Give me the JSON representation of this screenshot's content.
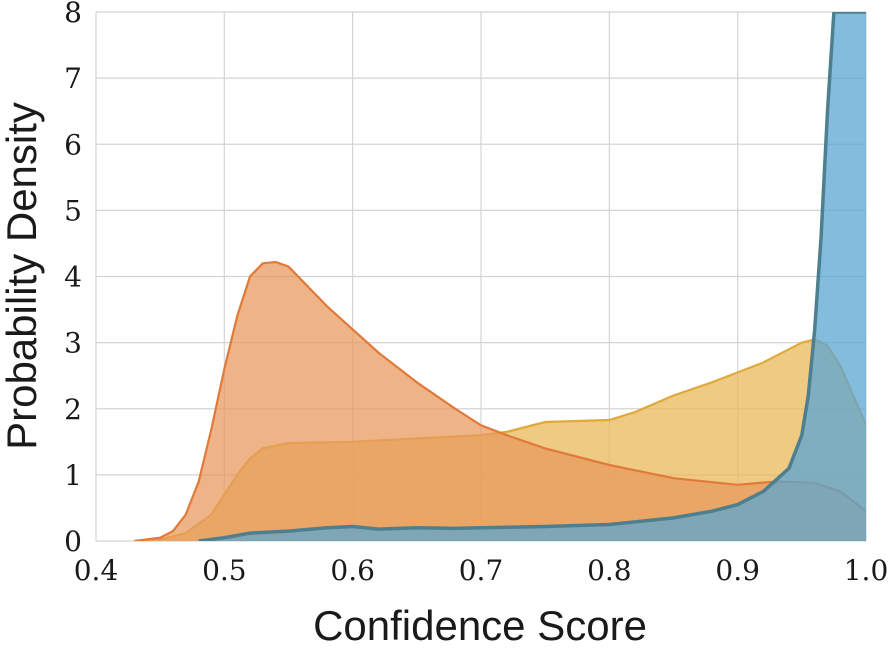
{
  "chart_data": {
    "type": "area",
    "title": "",
    "xlabel": "Confidence Score",
    "ylabel": "Probability Density",
    "xlim": [
      0.4,
      1.0
    ],
    "ylim": [
      0,
      8
    ],
    "xticks": [
      "0.4",
      "0.5",
      "0.6",
      "0.7",
      "0.8",
      "0.9",
      "1.0"
    ],
    "yticks": [
      "0",
      "1",
      "2",
      "3",
      "4",
      "5",
      "6",
      "7",
      "8"
    ],
    "grid": true,
    "legend": "none",
    "series": [
      {
        "color": "#e8b85a",
        "edge": "#e0a93a",
        "x": [
          0.43,
          0.45,
          0.47,
          0.49,
          0.5,
          0.51,
          0.52,
          0.53,
          0.55,
          0.6,
          0.65,
          0.7,
          0.72,
          0.75,
          0.8,
          0.82,
          0.85,
          0.88,
          0.9,
          0.92,
          0.94,
          0.95,
          0.96,
          0.97,
          0.98,
          0.99,
          1.0
        ],
        "y": [
          0.0,
          0.02,
          0.12,
          0.4,
          0.7,
          1.0,
          1.25,
          1.4,
          1.48,
          1.5,
          1.55,
          1.6,
          1.65,
          1.8,
          1.83,
          1.95,
          2.2,
          2.4,
          2.55,
          2.7,
          2.9,
          3.0,
          3.05,
          2.95,
          2.65,
          2.2,
          1.75
        ]
      },
      {
        "color": "#e89a5e",
        "edge": "#e07a3a",
        "x": [
          0.43,
          0.45,
          0.46,
          0.47,
          0.48,
          0.49,
          0.5,
          0.51,
          0.52,
          0.53,
          0.54,
          0.55,
          0.56,
          0.58,
          0.6,
          0.62,
          0.65,
          0.68,
          0.7,
          0.72,
          0.75,
          0.8,
          0.85,
          0.9,
          0.93,
          0.96,
          0.98,
          1.0
        ],
        "y": [
          0.0,
          0.05,
          0.15,
          0.4,
          0.9,
          1.7,
          2.6,
          3.4,
          4.0,
          4.2,
          4.22,
          4.15,
          3.95,
          3.55,
          3.2,
          2.85,
          2.4,
          2.0,
          1.75,
          1.6,
          1.4,
          1.15,
          0.95,
          0.85,
          0.9,
          0.88,
          0.75,
          0.45
        ]
      },
      {
        "color": "#5aa6d2",
        "edge": "#2e7fb5",
        "line": "#4e7f8f",
        "x": [
          0.48,
          0.5,
          0.52,
          0.55,
          0.58,
          0.6,
          0.62,
          0.65,
          0.68,
          0.7,
          0.75,
          0.8,
          0.85,
          0.88,
          0.9,
          0.92,
          0.94,
          0.95,
          0.955,
          0.96,
          0.965,
          0.97,
          0.975,
          0.98,
          0.99,
          1.0
        ],
        "y": [
          0.0,
          0.05,
          0.12,
          0.15,
          0.2,
          0.22,
          0.18,
          0.2,
          0.19,
          0.2,
          0.22,
          0.25,
          0.35,
          0.45,
          0.55,
          0.75,
          1.1,
          1.6,
          2.2,
          3.2,
          4.6,
          6.5,
          8.0,
          8.0,
          8.0,
          8.0
        ]
      }
    ]
  }
}
